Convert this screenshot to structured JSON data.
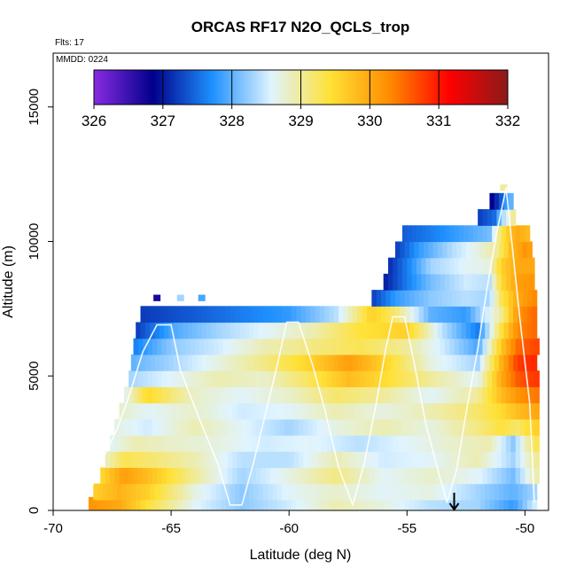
{
  "chart_data": {
    "type": "heatmap",
    "title": "ORCAS RF17 N2O_QCLS_trop",
    "annotations": {
      "flights": "Flts: 17",
      "date": "MMDD: 0224"
    },
    "xlabel": "Latitude (deg N)",
    "ylabel": "Altitude (m)",
    "xlim": [
      -70,
      -49
    ],
    "ylim": [
      0,
      17000
    ],
    "x_ticks": [
      -70,
      -65,
      -60,
      -55,
      -50
    ],
    "y_ticks": [
      0,
      5000,
      10000,
      15000
    ],
    "colorbar": {
      "min": 326,
      "max": 332,
      "ticks": [
        326,
        327,
        328,
        329,
        330,
        331,
        332
      ],
      "stops": [
        "#8a2be2",
        "#00008b",
        "#1e90ff",
        "#e0f4ff",
        "#ffe135",
        "#ff8c00",
        "#ff0000",
        "#8b1a1a"
      ]
    },
    "envelope_top": [
      [
        -68.8,
        300
      ],
      [
        -67.7,
        4200
      ],
      [
        -66.8,
        6400
      ],
      [
        -66.3,
        7400
      ],
      [
        -62,
        7450
      ],
      [
        -58,
        7500
      ],
      [
        -56.5,
        7800
      ],
      [
        -55.8,
        9000
      ],
      [
        -55.3,
        10200
      ],
      [
        -54,
        10350
      ],
      [
        -52.5,
        10600
      ],
      [
        -51.5,
        11400
      ],
      [
        -51.0,
        12000
      ],
      [
        -50.8,
        12100
      ],
      [
        -50.4,
        11500
      ],
      [
        -49.7,
        9800
      ],
      [
        -49.5,
        7000
      ],
      [
        -49.4,
        4500
      ]
    ],
    "data_bands": [
      {
        "alt": 200,
        "values": [
          [
            -68.5,
            330.2
          ],
          [
            -67.2,
            330.0
          ],
          [
            -66,
            329.4
          ],
          [
            -64,
            328.6
          ],
          [
            -62,
            328.2
          ],
          [
            -60,
            328.5
          ],
          [
            -58,
            328.9
          ],
          [
            -56,
            328.7
          ],
          [
            -54,
            328.4
          ],
          [
            -52,
            328.3
          ],
          [
            -50.5,
            327.8
          ],
          [
            -49.6,
            328.5
          ]
        ]
      },
      {
        "alt": 700,
        "values": [
          [
            -68.3,
            329.6
          ],
          [
            -67.2,
            329.9
          ],
          [
            -66,
            329.6
          ],
          [
            -64,
            328.7
          ],
          [
            -62,
            328.2
          ],
          [
            -60,
            328.6
          ],
          [
            -58,
            328.8
          ],
          [
            -56,
            328.6
          ],
          [
            -54,
            328.7
          ],
          [
            -52,
            328.3
          ],
          [
            -50.5,
            328.0
          ],
          [
            -49.6,
            328.3
          ]
        ]
      },
      {
        "alt": 1300,
        "values": [
          [
            -68.0,
            329.5
          ],
          [
            -67.0,
            330.1
          ],
          [
            -66,
            329.8
          ],
          [
            -64,
            329.0
          ],
          [
            -62,
            328.3
          ],
          [
            -60,
            328.7
          ],
          [
            -58,
            329.1
          ],
          [
            -56,
            328.6
          ],
          [
            -54,
            328.8
          ],
          [
            -52,
            328.6
          ],
          [
            -50.5,
            328.1
          ],
          [
            -49.6,
            328.9
          ]
        ]
      },
      {
        "alt": 1900,
        "values": [
          [
            -67.8,
            328.8
          ],
          [
            -67.0,
            329.3
          ],
          [
            -66,
            329.2
          ],
          [
            -64,
            328.9
          ],
          [
            -62,
            328.4
          ],
          [
            -60,
            328.4
          ],
          [
            -58,
            328.9
          ],
          [
            -56,
            328.5
          ],
          [
            -54,
            328.6
          ],
          [
            -52,
            328.9
          ],
          [
            -50.5,
            328.3
          ],
          [
            -49.6,
            329.0
          ]
        ]
      },
      {
        "alt": 2500,
        "values": [
          [
            -67.6,
            328.6
          ],
          [
            -66.5,
            328.9
          ],
          [
            -65,
            328.8
          ],
          [
            -63,
            328.7
          ],
          [
            -61,
            328.5
          ],
          [
            -59,
            328.6
          ],
          [
            -57,
            328.4
          ],
          [
            -55,
            328.6
          ],
          [
            -53,
            328.8
          ],
          [
            -51.5,
            328.9
          ],
          [
            -50.5,
            328.2
          ],
          [
            -49.6,
            329.3
          ]
        ]
      },
      {
        "alt": 3100,
        "values": [
          [
            -67.4,
            328.7
          ],
          [
            -66,
            328.5
          ],
          [
            -64,
            328.9
          ],
          [
            -62,
            328.6
          ],
          [
            -60,
            328.3
          ],
          [
            -58,
            328.7
          ],
          [
            -56,
            328.9
          ],
          [
            -54,
            328.7
          ],
          [
            -52,
            329.1
          ],
          [
            -51,
            329.4
          ],
          [
            -50.3,
            329.2
          ],
          [
            -49.6,
            329.6
          ]
        ]
      },
      {
        "alt": 3700,
        "values": [
          [
            -67.2,
            328.8
          ],
          [
            -66,
            328.6
          ],
          [
            -64,
            328.8
          ],
          [
            -62,
            328.5
          ],
          [
            -60,
            328.6
          ],
          [
            -58,
            328.9
          ],
          [
            -56,
            328.7
          ],
          [
            -54,
            328.9
          ],
          [
            -52,
            329.2
          ],
          [
            -51,
            329.5
          ],
          [
            -50.3,
            329.8
          ],
          [
            -49.6,
            330.0
          ]
        ]
      },
      {
        "alt": 4300,
        "values": [
          [
            -67.0,
            328.6
          ],
          [
            -66,
            329.5
          ],
          [
            -64,
            328.8
          ],
          [
            -62,
            328.6
          ],
          [
            -60,
            328.8
          ],
          [
            -58,
            329.2
          ],
          [
            -56,
            329.0
          ],
          [
            -54,
            328.6
          ],
          [
            -52,
            329.0
          ],
          [
            -51,
            329.8
          ],
          [
            -50.3,
            330.2
          ],
          [
            -49.6,
            330.4
          ]
        ]
      },
      {
        "alt": 4900,
        "values": [
          [
            -66.8,
            328.3
          ],
          [
            -65,
            328.6
          ],
          [
            -63,
            328.9
          ],
          [
            -61,
            328.8
          ],
          [
            -59,
            329.3
          ],
          [
            -57.5,
            329.8
          ],
          [
            -56.5,
            329.6
          ],
          [
            -54,
            329.0
          ],
          [
            -52,
            328.6
          ],
          [
            -51,
            330.0
          ],
          [
            -50.3,
            330.6
          ],
          [
            -49.6,
            330.8
          ]
        ]
      },
      {
        "alt": 5500,
        "values": [
          [
            -66.7,
            328.0
          ],
          [
            -65,
            328.3
          ],
          [
            -63,
            328.7
          ],
          [
            -61,
            329.1
          ],
          [
            -59,
            329.6
          ],
          [
            -57.5,
            330.1
          ],
          [
            -56.5,
            329.8
          ],
          [
            -54,
            328.7
          ],
          [
            -52,
            328.3
          ],
          [
            -51,
            329.9
          ],
          [
            -50.3,
            330.8
          ],
          [
            -49.6,
            330.9
          ]
        ]
      },
      {
        "alt": 6100,
        "values": [
          [
            -66.6,
            327.6
          ],
          [
            -65,
            328.2
          ],
          [
            -63,
            328.5
          ],
          [
            -61,
            328.9
          ],
          [
            -59,
            329.1
          ],
          [
            -57,
            329.3
          ],
          [
            -55,
            329.0
          ],
          [
            -53.5,
            328.5
          ],
          [
            -52,
            327.9
          ],
          [
            -51,
            329.7
          ],
          [
            -50.3,
            330.5
          ],
          [
            -49.6,
            330.7
          ]
        ]
      },
      {
        "alt": 6700,
        "values": [
          [
            -66.5,
            327.2
          ],
          [
            -65,
            327.9
          ],
          [
            -63,
            328.3
          ],
          [
            -61,
            328.6
          ],
          [
            -59,
            328.9
          ],
          [
            -57,
            329.4
          ],
          [
            -55,
            329.6
          ],
          [
            -53.5,
            328.4
          ],
          [
            -52,
            327.6
          ],
          [
            -51,
            329.4
          ],
          [
            -50.3,
            330.3
          ],
          [
            -49.6,
            330.5
          ]
        ]
      },
      {
        "alt": 7300,
        "values": [
          [
            -66.3,
            327.2
          ],
          [
            -64,
            327.4
          ],
          [
            -62,
            327.6
          ],
          [
            -60,
            327.8
          ],
          [
            -58,
            328.4
          ],
          [
            -56.5,
            329.6
          ],
          [
            -55.5,
            329.2
          ],
          [
            -54,
            328.0
          ],
          [
            -52.5,
            327.8
          ],
          [
            -51,
            329.0
          ],
          [
            -50.3,
            330.2
          ],
          [
            -49.6,
            330.5
          ]
        ]
      },
      {
        "alt": 7900,
        "values": [
          [
            -56.5,
            327.2
          ],
          [
            -55.5,
            327.8
          ],
          [
            -54,
            328.2
          ],
          [
            -52.5,
            328.4
          ],
          [
            -51.5,
            328.3
          ],
          [
            -51,
            329.3
          ],
          [
            -50.3,
            330.0
          ],
          [
            -49.6,
            330.3
          ]
        ]
      },
      {
        "alt": 8500,
        "values": [
          [
            -56,
            327.0
          ],
          [
            -55,
            327.6
          ],
          [
            -54,
            328.1
          ],
          [
            -52.5,
            328.5
          ],
          [
            -51.5,
            328.4
          ],
          [
            -51,
            329.5
          ],
          [
            -50.3,
            330.1
          ],
          [
            -49.6,
            330.2
          ]
        ]
      },
      {
        "alt": 9100,
        "values": [
          [
            -55.8,
            327.1
          ],
          [
            -55,
            327.6
          ],
          [
            -54,
            328.3
          ],
          [
            -52.5,
            328.6
          ],
          [
            -51.5,
            328.7
          ],
          [
            -51,
            329.6
          ],
          [
            -50.3,
            330.0
          ],
          [
            -49.6,
            330.0
          ]
        ]
      },
      {
        "alt": 9700,
        "values": [
          [
            -55.5,
            327.2
          ],
          [
            -54.5,
            327.8
          ],
          [
            -53,
            328.4
          ],
          [
            -52,
            328.7
          ],
          [
            -51.2,
            329.0
          ],
          [
            -50.6,
            329.8
          ],
          [
            -50.0,
            330.2
          ],
          [
            -49.6,
            330.0
          ]
        ]
      },
      {
        "alt": 10300,
        "values": [
          [
            -55.2,
            327.4
          ],
          [
            -54,
            327.6
          ],
          [
            -52.5,
            327.9
          ],
          [
            -51.5,
            328.1
          ],
          [
            -51.0,
            329.3
          ],
          [
            -50.4,
            330.0
          ],
          [
            -49.8,
            329.8
          ]
        ]
      },
      {
        "alt": 10900,
        "values": [
          [
            -52,
            327.2
          ],
          [
            -51.3,
            327.5
          ],
          [
            -50.9,
            328.4
          ],
          [
            -50.5,
            329.0
          ]
        ]
      },
      {
        "alt": 11500,
        "values": [
          [
            -51.5,
            326.7
          ],
          [
            -51.0,
            327.4
          ],
          [
            -50.7,
            328.0
          ]
        ]
      }
    ],
    "isolated_points": [
      {
        "lat": -65.6,
        "alt": 7900,
        "value": 326.7
      },
      {
        "lat": -64.6,
        "alt": 7900,
        "value": 328.3
      },
      {
        "lat": -63.7,
        "alt": 7900,
        "value": 327.9
      },
      {
        "lat": -50.9,
        "alt": 12000,
        "value": 329.0
      }
    ],
    "flight_track": [
      [
        -68.7,
        100
      ],
      [
        -67.9,
        1900
      ],
      [
        -67.3,
        3000
      ],
      [
        -66.8,
        4200
      ],
      [
        -66.2,
        5900
      ],
      [
        -65.6,
        6900
      ],
      [
        -65.0,
        6900
      ],
      [
        -64.6,
        5200
      ],
      [
        -63.8,
        3400
      ],
      [
        -63.0,
        1700
      ],
      [
        -62.5,
        200
      ],
      [
        -62.0,
        200
      ],
      [
        -61.5,
        1800
      ],
      [
        -61.0,
        3600
      ],
      [
        -60.5,
        5400
      ],
      [
        -60.1,
        7000
      ],
      [
        -59.6,
        7000
      ],
      [
        -59.0,
        5400
      ],
      [
        -58.5,
        3800
      ],
      [
        -57.9,
        1600
      ],
      [
        -57.3,
        200
      ],
      [
        -56.8,
        1800
      ],
      [
        -56.3,
        4000
      ],
      [
        -55.9,
        6000
      ],
      [
        -55.6,
        7200
      ],
      [
        -55.1,
        7200
      ],
      [
        -54.7,
        5500
      ],
      [
        -54.2,
        3200
      ],
      [
        -53.6,
        1200
      ],
      [
        -53.3,
        300
      ],
      [
        -52.9,
        1500
      ],
      [
        -52.5,
        3600
      ],
      [
        -52.0,
        6000
      ],
      [
        -51.6,
        8300
      ],
      [
        -51.2,
        10300
      ],
      [
        -50.8,
        12000
      ],
      [
        -50.5,
        9500
      ],
      [
        -50.2,
        7000
      ],
      [
        -49.8,
        4000
      ],
      [
        -49.6,
        300
      ]
    ],
    "marker": {
      "lat": -53.0,
      "type": "down-arrow"
    }
  }
}
